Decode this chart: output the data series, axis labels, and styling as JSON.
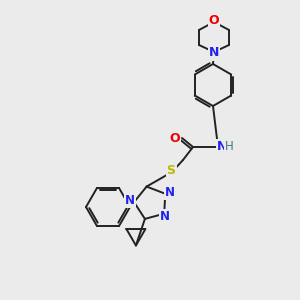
{
  "background_color": "#ebebeb",
  "bond_color": "#222222",
  "atom_colors": {
    "O": "#ee0000",
    "N": "#2222ee",
    "S": "#bbbb00",
    "H": "#447788",
    "C": "#222222"
  },
  "figsize": [
    3.0,
    3.0
  ],
  "dpi": 100
}
